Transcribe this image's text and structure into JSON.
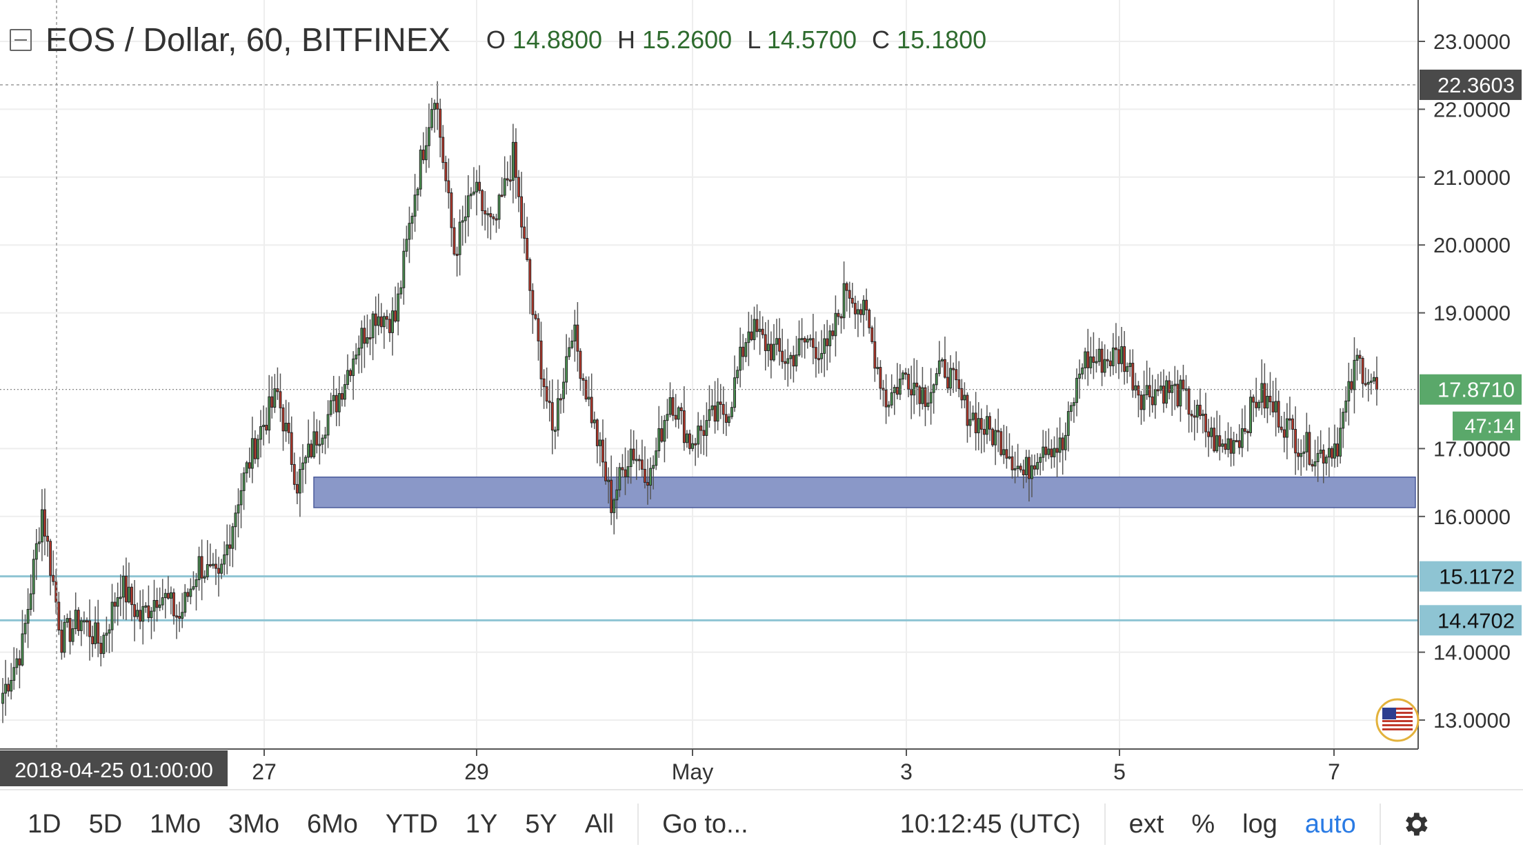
{
  "header": {
    "symbol": "EOS / Dollar, 60, BITFINEX",
    "o_label": "O",
    "o_value": "14.8800",
    "h_label": "H",
    "h_value": "15.2600",
    "l_label": "L",
    "l_value": "14.5700",
    "c_label": "C",
    "c_value": "15.1800"
  },
  "price_axis": {
    "labels": [
      "23.0000",
      "22.0000",
      "21.0000",
      "20.0000",
      "19.0000",
      "17.0000",
      "16.0000",
      "14.0000",
      "13.0000"
    ],
    "crosshair_price": "22.3603",
    "last_price": "17.8710",
    "countdown": "47:14",
    "level_1": "15.1172",
    "level_2": "14.4702"
  },
  "time_axis": {
    "labels": [
      "27",
      "29",
      "May",
      "3",
      "5",
      "7"
    ],
    "crosshair_time": "2018-04-25 01:00:00"
  },
  "bottom_bar": {
    "ranges": [
      "1D",
      "5D",
      "1Mo",
      "3Mo",
      "6Mo",
      "YTD",
      "1Y",
      "5Y",
      "All"
    ],
    "goto": "Go to...",
    "clock": "10:12:45 (UTC)",
    "ext": "ext",
    "percent": "%",
    "log": "log",
    "auto": "auto"
  },
  "colors": {
    "up": "#4e9a55",
    "down": "#c0392b",
    "zone": "#8a98c8",
    "hline": "#8ec4d3",
    "last_price_bg": "#5aa86a"
  },
  "chart_data": {
    "type": "candlestick",
    "title": "EOS / Dollar, 60, BITFINEX",
    "x_ticks": [
      "27",
      "29",
      "May",
      "3",
      "5",
      "7"
    ],
    "ylim": [
      12.6,
      23.3
    ],
    "support_zone": [
      16.13,
      16.58
    ],
    "horizontal_levels": [
      15.1172,
      14.4702
    ],
    "last_price": 17.871,
    "close_path": [
      {
        "t": "Apr 25",
        "price": 13.4
      },
      {
        "t": "Apr 25",
        "price": 14.1
      },
      {
        "t": "Apr 25",
        "price": 16.1
      },
      {
        "t": "Apr 26",
        "price": 14.2
      },
      {
        "t": "Apr 26",
        "price": 14.5
      },
      {
        "t": "Apr 26",
        "price": 14.1
      },
      {
        "t": "Apr 26",
        "price": 15.0
      },
      {
        "t": "Apr 26",
        "price": 14.5
      },
      {
        "t": "Apr 26",
        "price": 14.9
      },
      {
        "t": "Apr 26",
        "price": 14.5
      },
      {
        "t": "Apr 27",
        "price": 15.3
      },
      {
        "t": "Apr 27",
        "price": 15.0
      },
      {
        "t": "Apr 27",
        "price": 16.3
      },
      {
        "t": "Apr 27",
        "price": 17.2
      },
      {
        "t": "Apr 27",
        "price": 17.8
      },
      {
        "t": "Apr 28",
        "price": 16.5
      },
      {
        "t": "Apr 28",
        "price": 17.2
      },
      {
        "t": "Apr 28",
        "price": 17.7
      },
      {
        "t": "Apr 28",
        "price": 18.5
      },
      {
        "t": "Apr 28",
        "price": 19.0
      },
      {
        "t": "Apr 28",
        "price": 18.9
      },
      {
        "t": "Apr 29",
        "price": 20.8
      },
      {
        "t": "Apr 29",
        "price": 22.3
      },
      {
        "t": "Apr 29",
        "price": 19.9
      },
      {
        "t": "Apr 29",
        "price": 20.8
      },
      {
        "t": "Apr 30",
        "price": 20.2
      },
      {
        "t": "Apr 30",
        "price": 21.3
      },
      {
        "t": "Apr 30",
        "price": 19.0
      },
      {
        "t": "Apr 30",
        "price": 17.2
      },
      {
        "t": "Apr 30",
        "price": 18.8
      },
      {
        "t": "Apr 30",
        "price": 17.5
      },
      {
        "t": "May 1",
        "price": 16.2
      },
      {
        "t": "May 1",
        "price": 17.0
      },
      {
        "t": "May 1",
        "price": 16.6
      },
      {
        "t": "May 1",
        "price": 17.8
      },
      {
        "t": "May 1",
        "price": 17.1
      },
      {
        "t": "May 1",
        "price": 17.4
      },
      {
        "t": "May 2",
        "price": 17.6
      },
      {
        "t": "May 2",
        "price": 18.8
      },
      {
        "t": "May 2",
        "price": 18.5
      },
      {
        "t": "May 2",
        "price": 18.3
      },
      {
        "t": "May 2",
        "price": 18.6
      },
      {
        "t": "May 2",
        "price": 18.4
      },
      {
        "t": "May 2",
        "price": 19.4
      },
      {
        "t": "May 3",
        "price": 18.9
      },
      {
        "t": "May 3",
        "price": 17.7
      },
      {
        "t": "May 3",
        "price": 18.1
      },
      {
        "t": "May 3",
        "price": 17.8
      },
      {
        "t": "May 3",
        "price": 18.2
      },
      {
        "t": "May 3",
        "price": 17.6
      },
      {
        "t": "May 4",
        "price": 17.3
      },
      {
        "t": "May 4",
        "price": 17.1
      },
      {
        "t": "May 4",
        "price": 16.6
      },
      {
        "t": "May 4",
        "price": 17.1
      },
      {
        "t": "May 4",
        "price": 17.0
      },
      {
        "t": "May 5",
        "price": 18.3
      },
      {
        "t": "May 5",
        "price": 18.3
      },
      {
        "t": "May 5",
        "price": 18.4
      },
      {
        "t": "May 5",
        "price": 17.8
      },
      {
        "t": "May 5",
        "price": 17.9
      },
      {
        "t": "May 5",
        "price": 17.8
      },
      {
        "t": "May 6",
        "price": 17.4
      },
      {
        "t": "May 6",
        "price": 17.0
      },
      {
        "t": "May 6",
        "price": 17.2
      },
      {
        "t": "May 6",
        "price": 17.8
      },
      {
        "t": "May 6",
        "price": 17.5
      },
      {
        "t": "May 6",
        "price": 17.1
      },
      {
        "t": "May 7",
        "price": 16.9
      },
      {
        "t": "May 7",
        "price": 17.1
      },
      {
        "t": "May 7",
        "price": 18.3
      },
      {
        "t": "May 7",
        "price": 17.87
      }
    ]
  }
}
